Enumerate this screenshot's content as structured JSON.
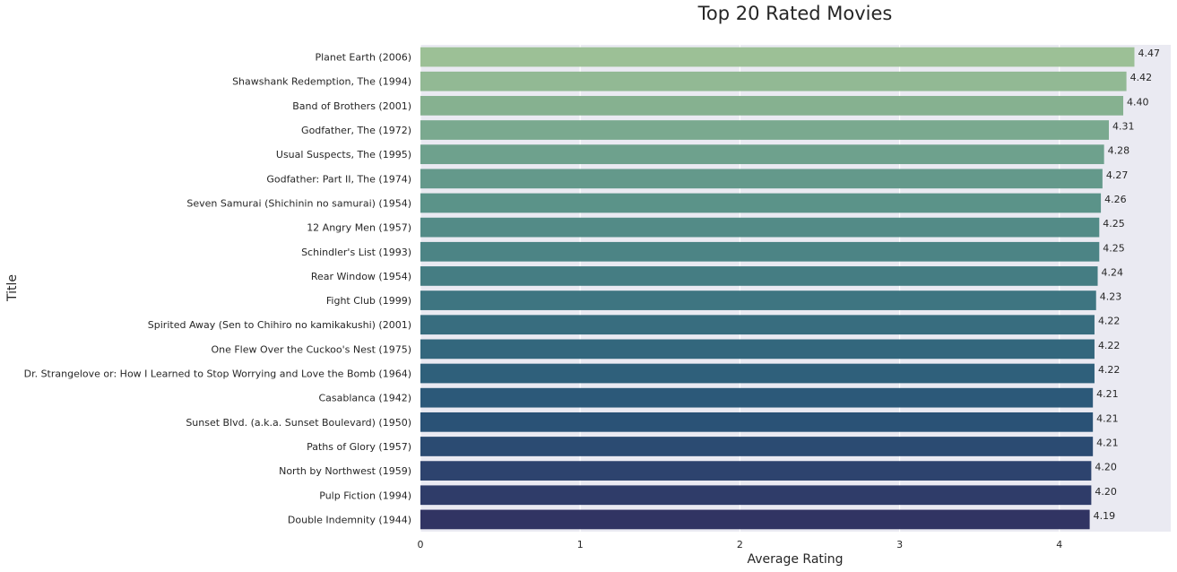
{
  "chart_data": {
    "type": "bar",
    "orientation": "horizontal",
    "title": "Top 20 Rated Movies",
    "xlabel": "Average Rating",
    "ylabel": "Title",
    "xlim": [
      0,
      4.7
    ],
    "xticks": [
      "0",
      "1",
      "2",
      "3",
      "4"
    ],
    "grid": true,
    "categories": [
      "Planet Earth (2006)",
      "Shawshank Redemption, The (1994)",
      "Band of Brothers (2001)",
      "Godfather, The (1972)",
      "Usual Suspects, The (1995)",
      "Godfather: Part II, The (1974)",
      "Seven Samurai (Shichinin no samurai) (1954)",
      "12 Angry Men (1957)",
      "Schindler's List (1993)",
      "Rear Window (1954)",
      "Fight Club (1999)",
      "Spirited Away (Sen to Chihiro no kamikakushi) (2001)",
      "One Flew Over the Cuckoo's Nest (1975)",
      "Dr. Strangelove or: How I Learned to Stop Worrying and Love the Bomb (1964)",
      "Casablanca (1942)",
      "Sunset Blvd. (a.k.a. Sunset Boulevard) (1950)",
      "Paths of Glory (1957)",
      "North by Northwest (1959)",
      "Pulp Fiction (1994)",
      "Double Indemnity (1944)"
    ],
    "values": [
      4.47,
      4.42,
      4.4,
      4.31,
      4.28,
      4.27,
      4.26,
      4.25,
      4.25,
      4.24,
      4.23,
      4.22,
      4.22,
      4.22,
      4.21,
      4.21,
      4.21,
      4.2,
      4.2,
      4.19
    ],
    "value_labels": [
      "4.47",
      "4.42",
      "4.40",
      "4.31",
      "4.28",
      "4.27",
      "4.26",
      "4.25",
      "4.25",
      "4.24",
      "4.23",
      "4.22",
      "4.22",
      "4.22",
      "4.21",
      "4.21",
      "4.21",
      "4.20",
      "4.20",
      "4.19"
    ],
    "colors": [
      "#9cc096",
      "#92b994",
      "#86b190",
      "#7aa98f",
      "#6ea18d",
      "#64998b",
      "#5b9389",
      "#538b87",
      "#4c8485",
      "#457d83",
      "#3e7581",
      "#386d7f",
      "#33677d",
      "#2f607b",
      "#2c5979",
      "#2a5276",
      "#2b4b72",
      "#2d436e",
      "#2f3c69",
      "#313463"
    ],
    "background": "#eaeaf2",
    "gridline_color": "#ffffff"
  }
}
